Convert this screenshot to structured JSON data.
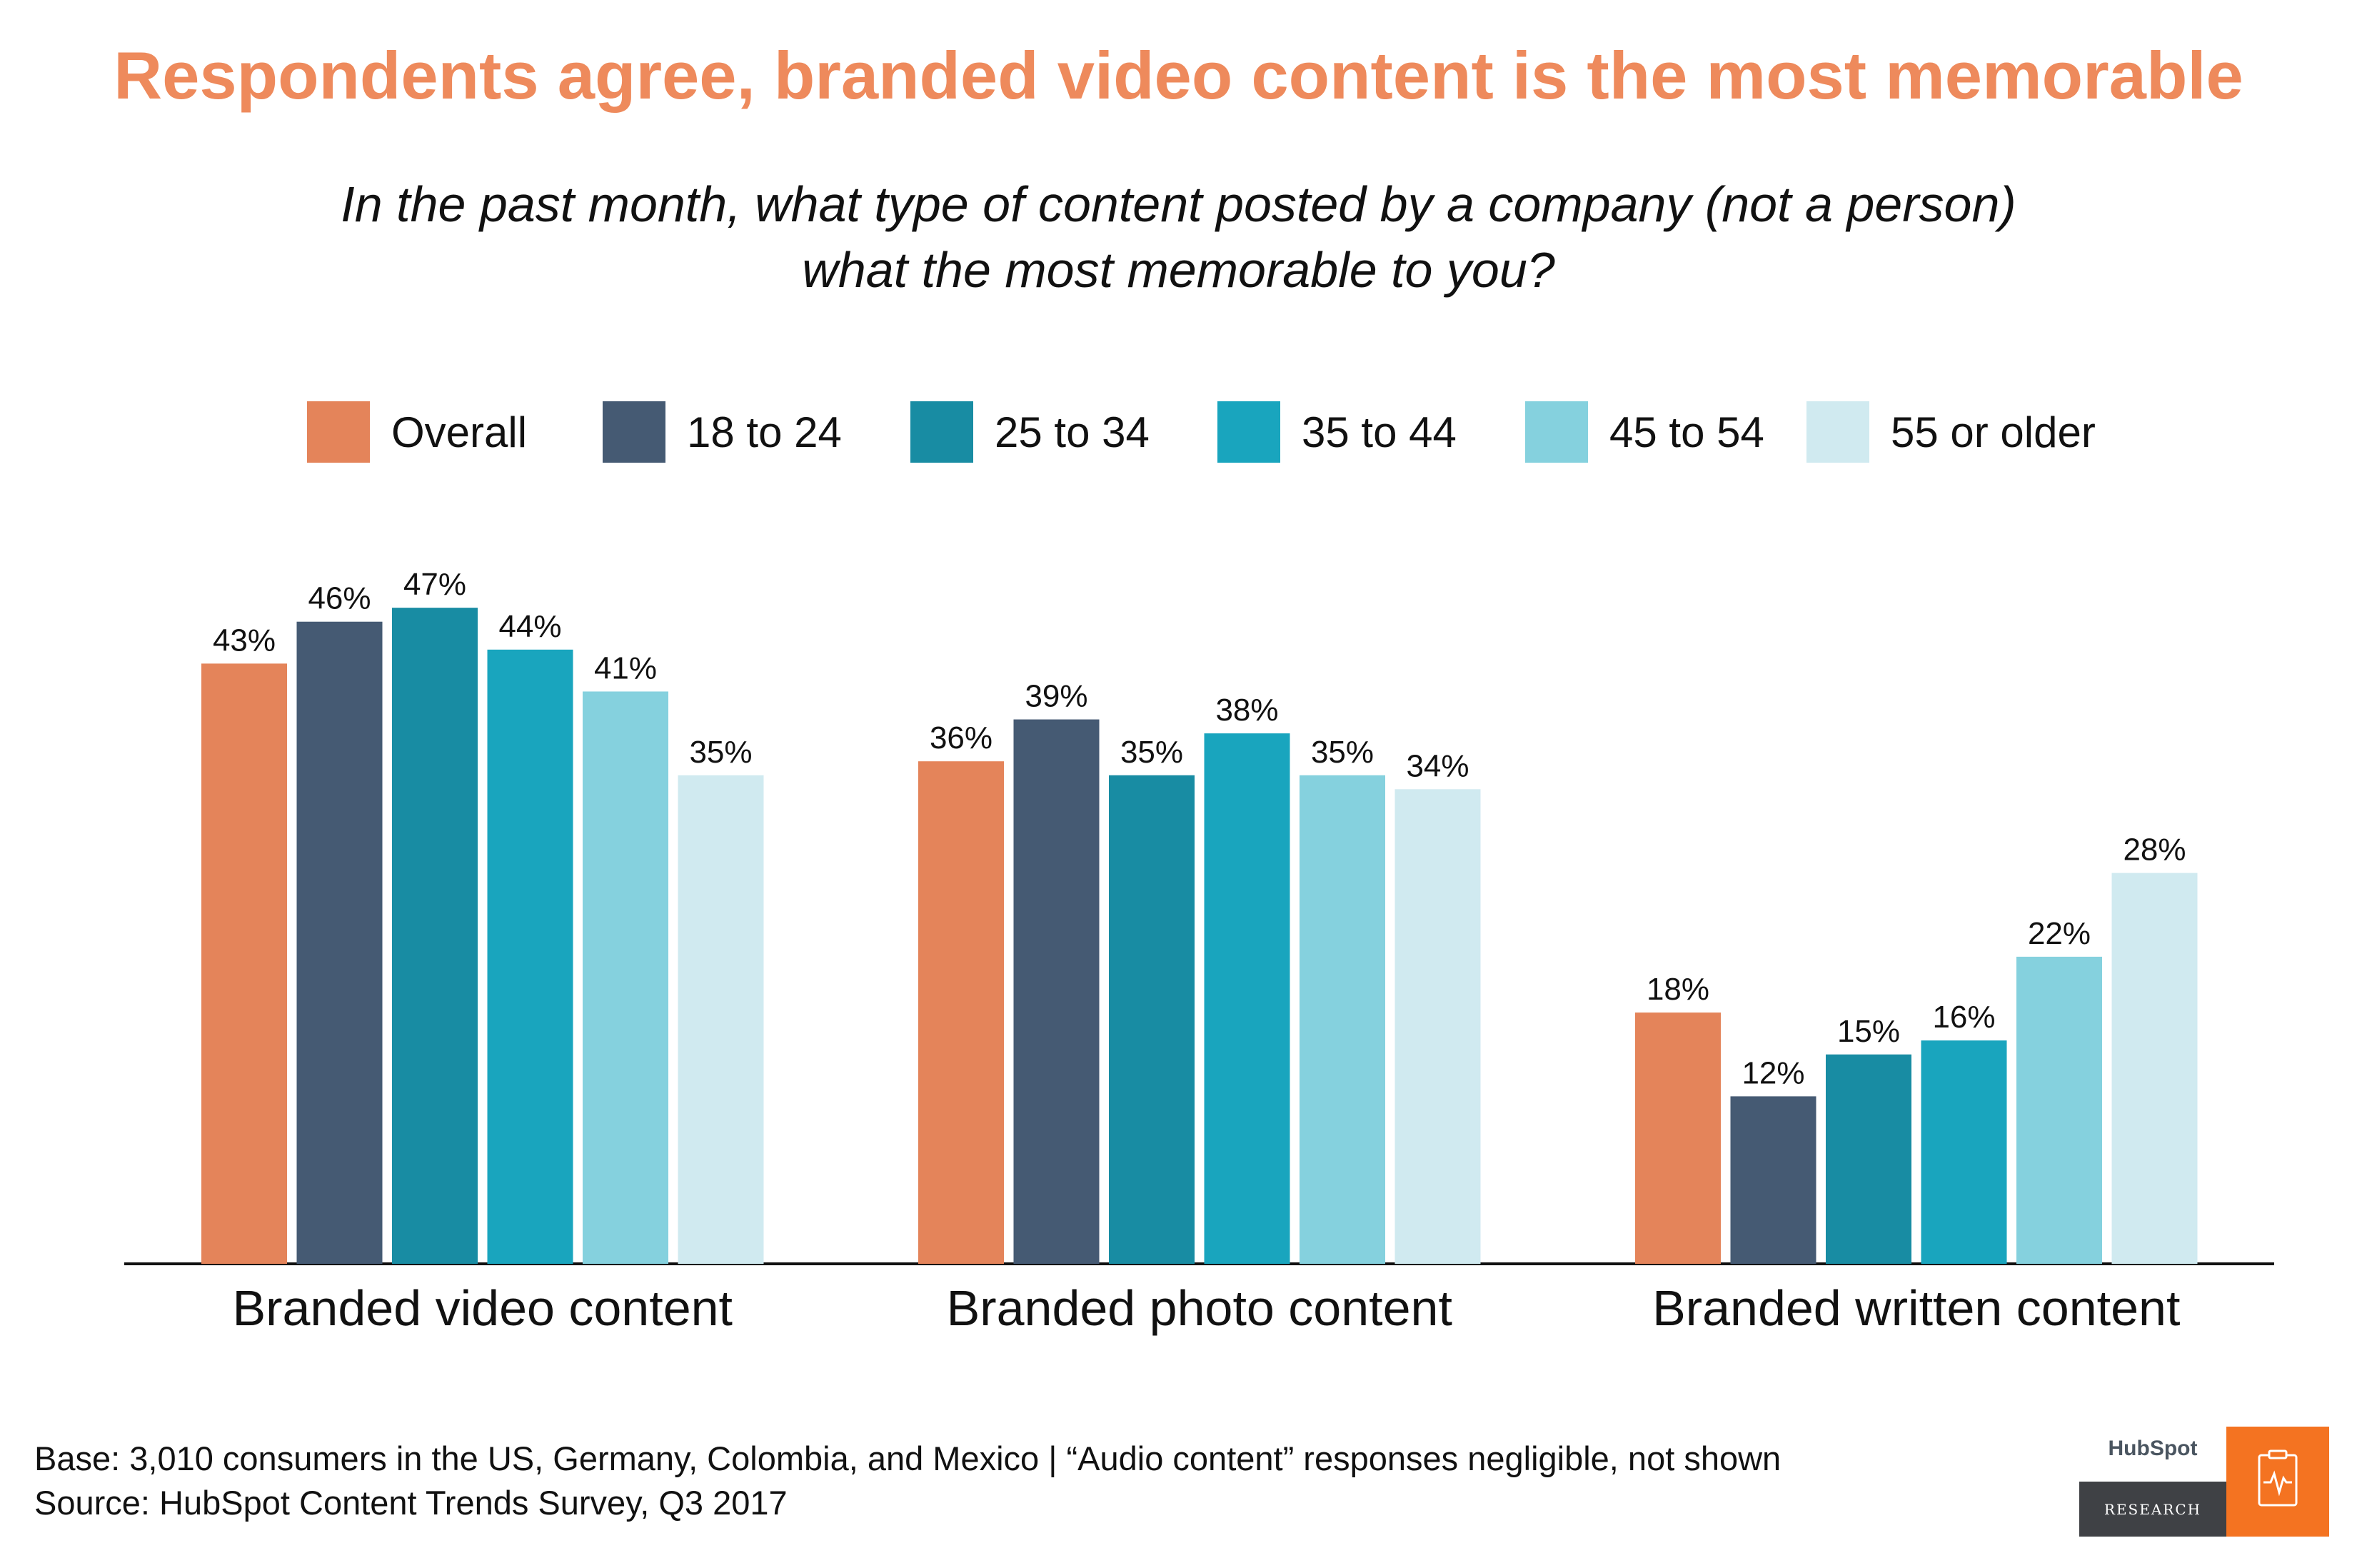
{
  "title": "Respondents agree, branded video content is the most memorable",
  "question": {
    "line1": "In the past month, what type of content posted by a company (not a person)",
    "line2": "what the most memorable to you?"
  },
  "chart_data": {
    "type": "bar",
    "categories": [
      "Branded video content",
      "Branded photo content",
      "Branded written content"
    ],
    "series": [
      {
        "name": "Overall",
        "color": "#e4845a",
        "values": [
          43,
          36,
          18
        ]
      },
      {
        "name": "18 to 24",
        "color": "#455a73",
        "values": [
          46,
          39,
          12
        ]
      },
      {
        "name": "25 to 34",
        "color": "#188ca3",
        "values": [
          47,
          35,
          15
        ]
      },
      {
        "name": "35 to 44",
        "color": "#19a5be",
        "values": [
          44,
          38,
          16
        ]
      },
      {
        "name": "45 to 54",
        "color": "#85d1de",
        "values": [
          41,
          35,
          22
        ]
      },
      {
        "name": "55 or older",
        "color": "#d0eaf0",
        "values": [
          35,
          34,
          28
        ]
      }
    ],
    "value_suffix": "%",
    "ylim": [
      0,
      50
    ],
    "grid": false,
    "legend_position": "top"
  },
  "footer": {
    "base": "Base: 3,010 consumers in the US, Germany, Colombia, and Mexico | “Audio content” responses negligible, not shown",
    "source": "Source: HubSpot Content Trends Survey, Q3 2017"
  },
  "logo": {
    "brand": "HubSpot",
    "label": "RESEARCH",
    "icon": "clipboard-pulse-icon"
  }
}
